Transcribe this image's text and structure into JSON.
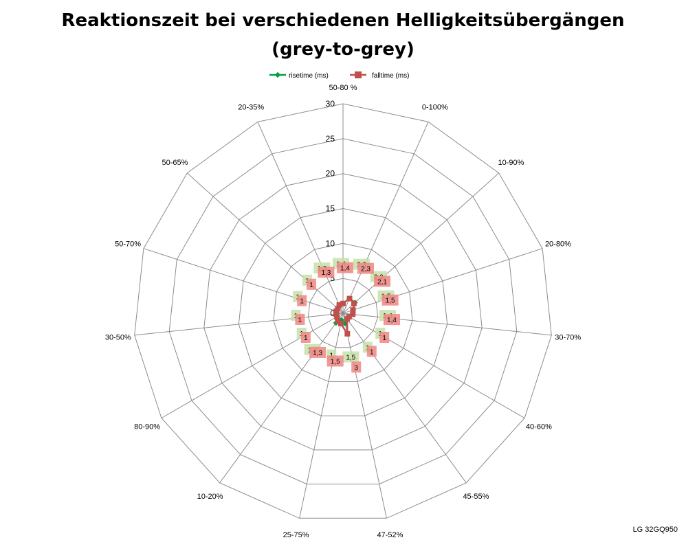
{
  "chart_data": {
    "type": "radar",
    "title": "Reaktionszeit bei verschiedenen Helligkeitsübergängen",
    "subtitle": "(grey-to-grey)",
    "categories": [
      "50-80 %",
      "0-100%",
      "10-90%",
      "20-80%",
      "30-70%",
      "40-60%",
      "45-55%",
      "47-52%",
      "25-75%",
      "10-20%",
      "80-90%",
      "30-50%",
      "50-70%",
      "50-65%",
      "20-35%"
    ],
    "r_ticks": [
      "0",
      "5",
      "10",
      "15",
      "20",
      "25",
      "30"
    ],
    "rlim": [
      0,
      30
    ],
    "grid": true,
    "legend_position": "top",
    "series": [
      {
        "name": "risetime (ms)",
        "color": "#00a040",
        "label_bg": "#c6e0a8",
        "values": [
          1.4,
          2.3,
          2.3,
          1.5,
          1.4,
          1.0,
          1.0,
          1.5,
          1.0,
          1.7,
          1.0,
          1.0,
          1.0,
          1.0,
          1.3
        ],
        "labels": [
          "1,4",
          "2,3",
          "2,3",
          "1,5",
          "1,4",
          "1",
          "1",
          "1,5",
          "1",
          "1,7",
          "1",
          "1",
          "1",
          "1",
          "1,3"
        ]
      },
      {
        "name": "falltime (ms)",
        "color": "#c0504d",
        "label_bg": "#f08c8a",
        "values": [
          1.4,
          2.3,
          2.1,
          1.5,
          1.4,
          1.0,
          1.0,
          3.0,
          1.5,
          1.3,
          1.0,
          1.0,
          1.0,
          1.0,
          1.3
        ],
        "labels": [
          "1,4",
          "2,3",
          "2,1",
          "1,5",
          "1,4",
          "1",
          "1",
          "3",
          "1,5",
          "1,3",
          "1",
          "1",
          "1",
          "1",
          "1,3"
        ]
      }
    ]
  },
  "footer": "LG 32GQ950"
}
